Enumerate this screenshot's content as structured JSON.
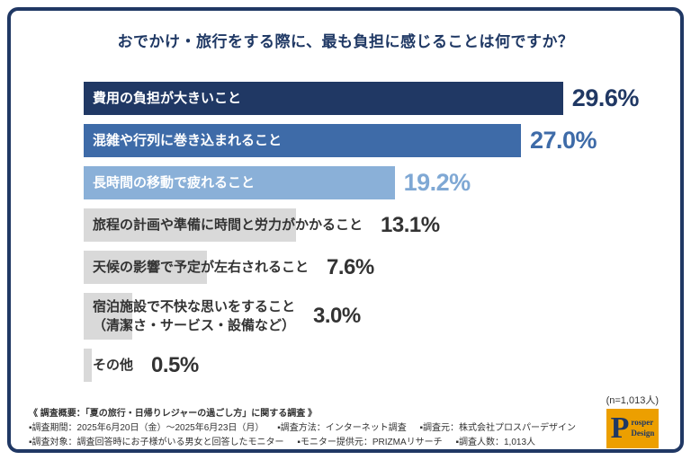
{
  "title": "おでかけ・旅行をする際に、最も負担に感じることは何ですか？",
  "sample_note": "(n=1,013人)",
  "chart_data": {
    "type": "bar",
    "orientation": "horizontal",
    "unit": "%",
    "title": "おでかけ・旅行をする際に、最も負担に感じることは何ですか？",
    "categories": [
      "費用の負担が大きいこと",
      "混雑や行列に巻き込まれること",
      "長時間の移動で疲れること",
      "旅程の計画や準備に時間と労力がかかること",
      "天候の影響で予定が左右されること",
      "宿泊施設で不快な思いをすること（清潔さ・サービス・設備など）",
      "その他"
    ],
    "values": [
      29.6,
      27.0,
      19.2,
      13.1,
      7.6,
      3.0,
      0.5
    ],
    "xlim": [
      0,
      33
    ],
    "grid": false,
    "rows": [
      {
        "label": "費用の負担が大きいこと",
        "value": 29.6,
        "pct_label": "29.6%",
        "bar_color": "#203864",
        "label_color": "#ffffff",
        "pct_color": "#203864"
      },
      {
        "label": "混雑や行列に巻き込まれること",
        "value": 27.0,
        "pct_label": "27.0%",
        "bar_color": "#3e6ba8",
        "label_color": "#ffffff",
        "pct_color": "#3e6ba8"
      },
      {
        "label": "長時間の移動で疲れること",
        "value": 19.2,
        "pct_label": "19.2%",
        "bar_color": "#8ab0d8",
        "label_color": "#ffffff",
        "pct_color": "#7fa8d4"
      },
      {
        "label": "旅程の計画や準備に時間と労力がかかること",
        "value": 13.1,
        "pct_label": "13.1%",
        "bar_color": "#d9d9d9",
        "label_color": "#333333",
        "pct_color": "#333333"
      },
      {
        "label": "天候の影響で予定が左右されること",
        "value": 7.6,
        "pct_label": "7.6%",
        "bar_color": "#d9d9d9",
        "label_color": "#333333",
        "pct_color": "#333333"
      },
      {
        "label": "宿泊施設で不快な思いをすること\n（清潔さ・サービス・設備など）",
        "value": 3.0,
        "pct_label": "3.0%",
        "bar_color": "#d9d9d9",
        "label_color": "#333333",
        "pct_color": "#333333"
      },
      {
        "label": "その他",
        "value": 0.5,
        "pct_label": "0.5%",
        "bar_color": "#d9d9d9",
        "label_color": "#333333",
        "pct_color": "#333333"
      }
    ]
  },
  "footer": {
    "line1": "《 調査概要：「夏の旅行・日帰りレジャーの過ごし方」に関する調査 》",
    "line2_items": [
      "▪調査期間：2025年6月20日（金）〜2025年6月23日（月）",
      "▪調査方法：インターネット調査",
      "▪調査元：株式会社プロスパーデザイン"
    ],
    "line3_items": [
      "▪調査対象：調査回答時にお子様がいる男女と回答したモニター",
      "▪モニター提供元：PRIZMAリサーチ",
      "▪調査人数：1,013人"
    ]
  },
  "logo": {
    "company": "Prosper Design",
    "monogram": "P",
    "word_top": "rosper",
    "word_bottom": "Design",
    "gold": "#ec9f00",
    "navy": "#1f3864"
  }
}
